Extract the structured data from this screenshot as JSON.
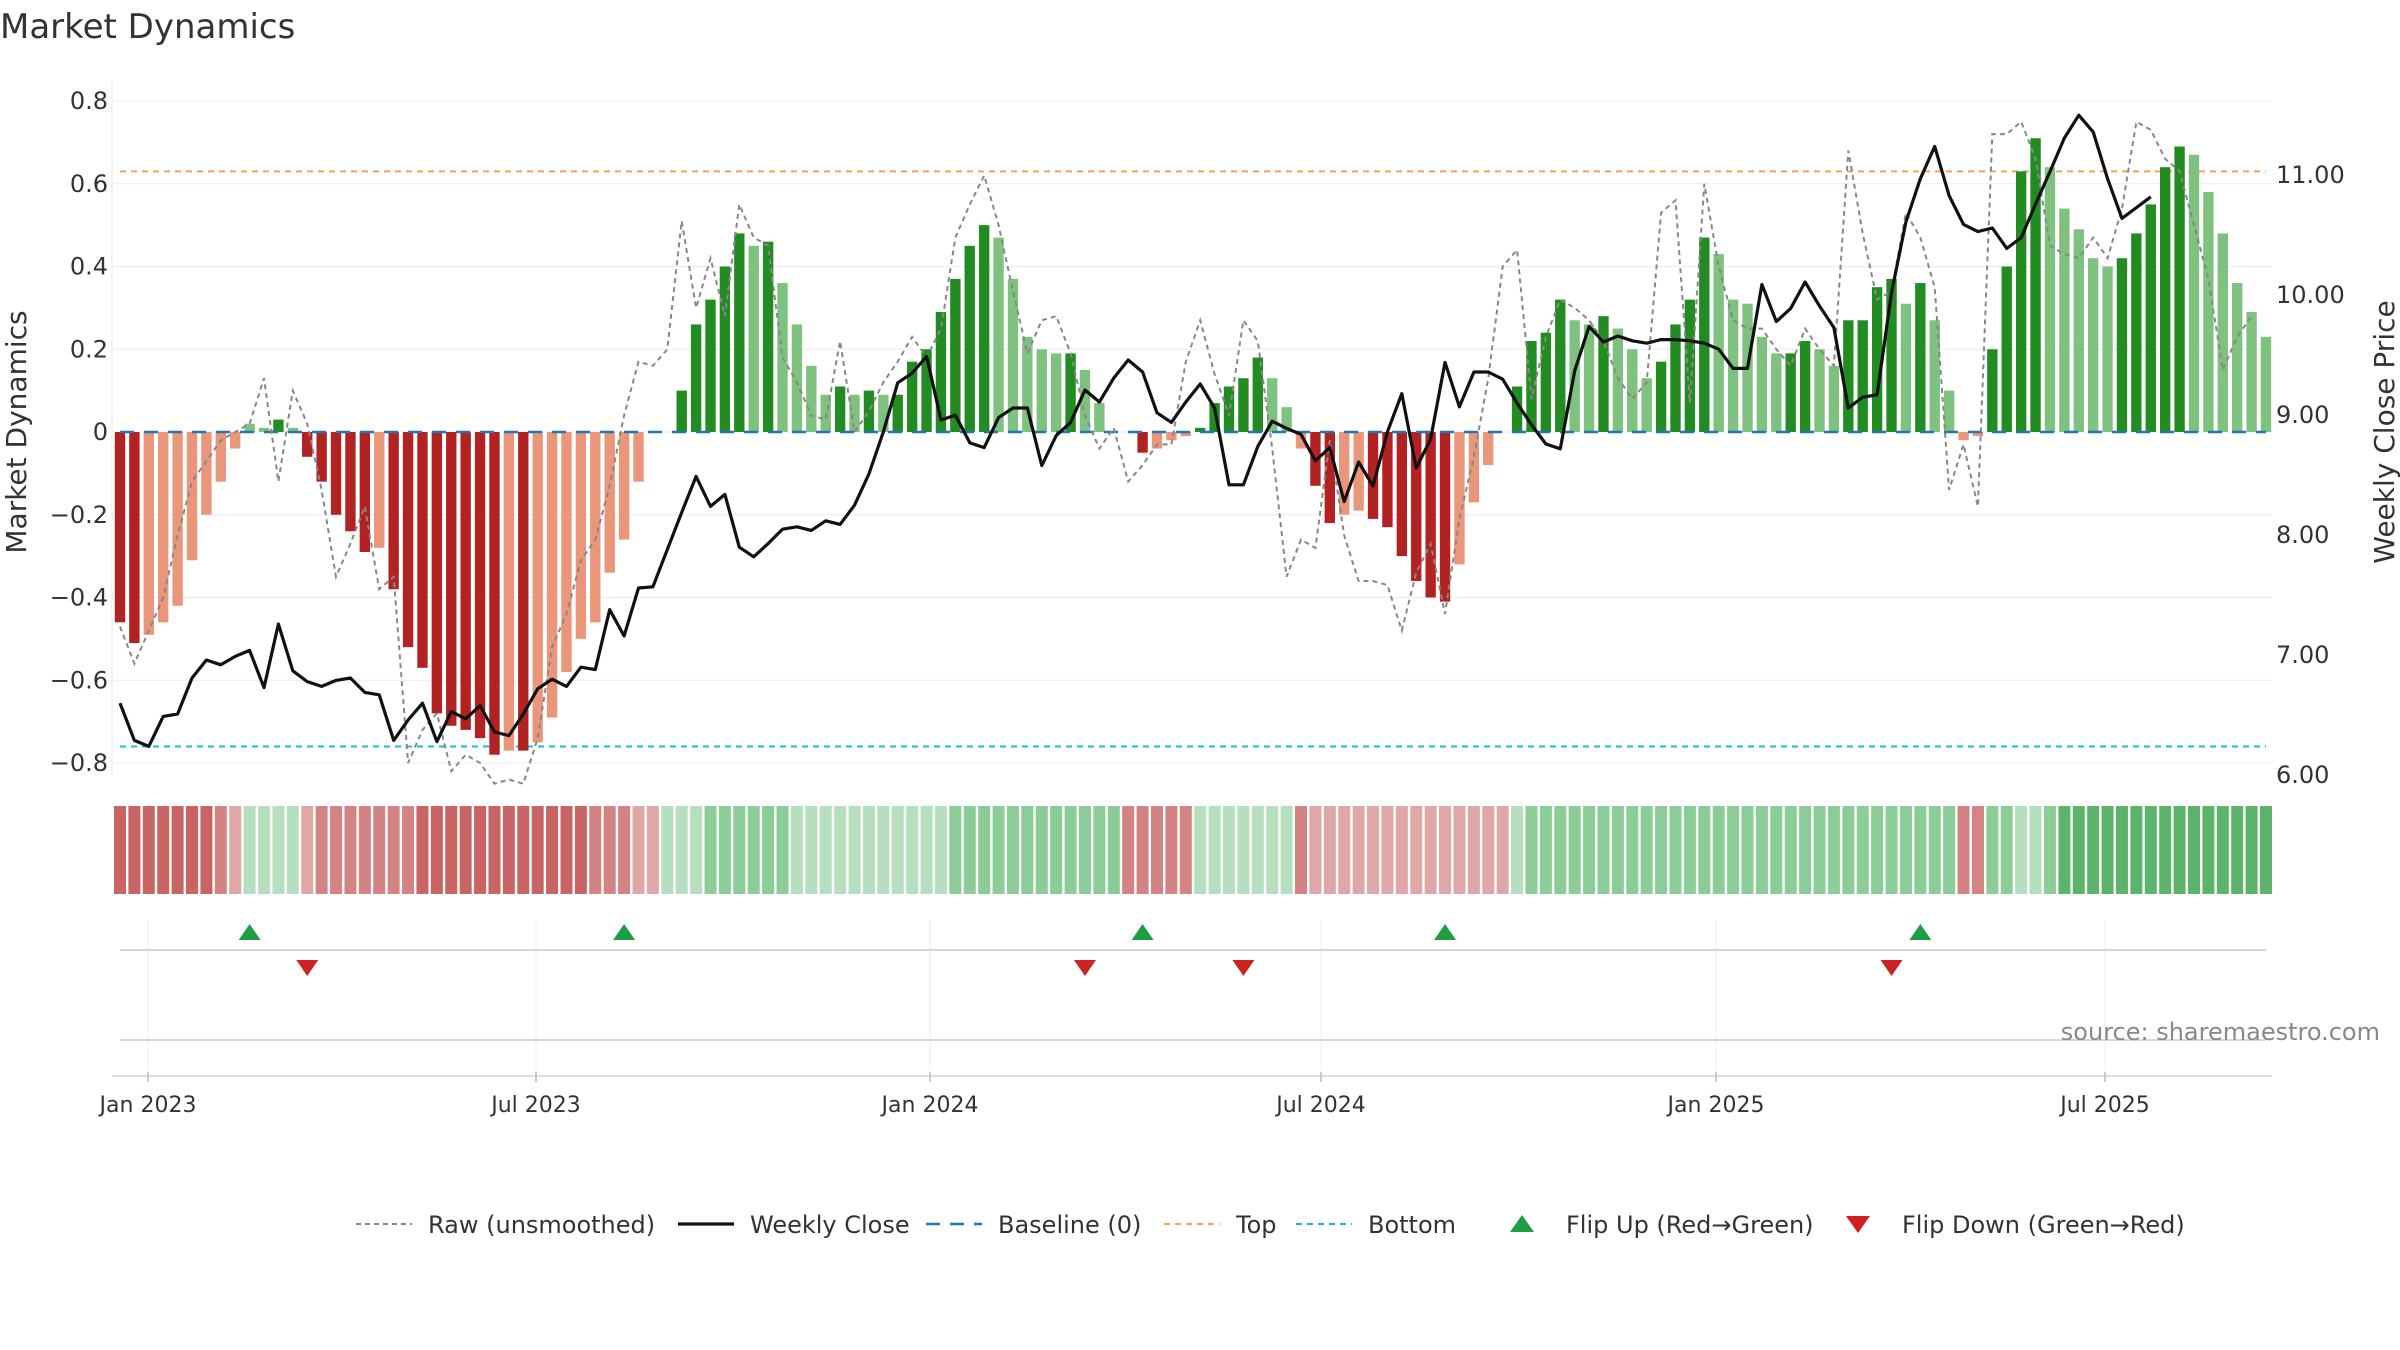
{
  "chart_data": {
    "type": "bar",
    "title": "Market Dynamics",
    "ylabel_left": "Market Dynamics",
    "ylabel_right": "Weekly Close Price",
    "left_ticks": [
      "0.8",
      "0.6",
      "0.4",
      "0.2",
      "0",
      "−0.2",
      "−0.4",
      "−0.6",
      "−0.8"
    ],
    "right_ticks": [
      "11.00",
      "10.00",
      "9.00",
      "8.00",
      "7.00",
      "6.00"
    ],
    "x_ticks": [
      "Jan 2023",
      "Jul 2023",
      "Jan 2024",
      "Jul 2024",
      "Jan 2025",
      "Jul 2025"
    ],
    "ylim_left": [
      -0.84,
      0.84
    ],
    "ylim_right": [
      6.0,
      11.8
    ],
    "top_level": 0.63,
    "bottom_level": -0.76,
    "bars": [
      -0.46,
      -0.51,
      -0.49,
      -0.46,
      -0.42,
      -0.31,
      -0.2,
      -0.12,
      -0.04,
      0.02,
      0.01,
      0.03,
      0.01,
      -0.06,
      -0.12,
      -0.2,
      -0.24,
      -0.29,
      -0.28,
      -0.38,
      -0.52,
      -0.57,
      -0.68,
      -0.71,
      -0.72,
      -0.74,
      -0.78,
      -0.77,
      -0.77,
      -0.75,
      -0.69,
      -0.58,
      -0.5,
      -0.46,
      -0.34,
      -0.26,
      -0.12,
      0,
      0,
      0.1,
      0.26,
      0.32,
      0.4,
      0.48,
      0.45,
      0.46,
      0.36,
      0.26,
      0.16,
      0.09,
      0.11,
      0.09,
      0.1,
      0.09,
      0.09,
      0.17,
      0.2,
      0.29,
      0.37,
      0.45,
      0.5,
      0.47,
      0.37,
      0.23,
      0.2,
      0.19,
      0.19,
      0.15,
      0.07,
      0,
      0,
      -0.05,
      -0.04,
      -0.02,
      -0.01,
      0.01,
      0.07,
      0.11,
      0.13,
      0.18,
      0.13,
      0.06,
      -0.04,
      -0.13,
      -0.22,
      -0.2,
      -0.19,
      -0.21,
      -0.23,
      -0.3,
      -0.36,
      -0.4,
      -0.41,
      -0.32,
      -0.17,
      -0.08,
      0,
      0.11,
      0.22,
      0.24,
      0.32,
      0.27,
      0.26,
      0.28,
      0.25,
      0.2,
      0.13,
      0.17,
      0.26,
      0.32,
      0.47,
      0.43,
      0.32,
      0.31,
      0.23,
      0.19,
      0.19,
      0.22,
      0.2,
      0.16,
      0.27,
      0.27,
      0.35,
      0.37,
      0.31,
      0.36,
      0.27,
      0.1,
      -0.02,
      -0.01,
      0.2,
      0.4,
      0.63,
      0.71,
      0.64,
      0.54,
      0.49,
      0.42,
      0.4,
      0.42,
      0.48,
      0.55,
      0.64,
      0.69,
      0.67,
      0.58,
      0.48,
      0.36,
      0.29,
      0.23
    ],
    "raw": [
      -0.47,
      -0.56,
      -0.48,
      -0.4,
      -0.25,
      -0.12,
      -0.07,
      -0.02,
      0,
      0.02,
      0.13,
      -0.12,
      0.1,
      0.02,
      -0.14,
      -0.35,
      -0.27,
      -0.18,
      -0.38,
      -0.35,
      -0.8,
      -0.72,
      -0.68,
      -0.82,
      -0.78,
      -0.8,
      -0.85,
      -0.84,
      -0.85,
      -0.74,
      -0.52,
      -0.44,
      -0.31,
      -0.26,
      -0.13,
      0.04,
      0.17,
      0.16,
      0.2,
      0.51,
      0.3,
      0.42,
      0.28,
      0.55,
      0.47,
      0.45,
      0.18,
      0.12,
      0.04,
      0.03,
      0.22,
      0,
      0.05,
      0.12,
      0.17,
      0.23,
      0.18,
      0.25,
      0.47,
      0.55,
      0.62,
      0.5,
      0.34,
      0.19,
      0.27,
      0.28,
      0.19,
      0.04,
      -0.04,
      0.01,
      -0.12,
      -0.08,
      -0.03,
      -0.03,
      0.17,
      0.27,
      0.14,
      0.04,
      0.27,
      0.22,
      -0.04,
      -0.35,
      -0.26,
      -0.28,
      -0.02,
      -0.25,
      -0.36,
      -0.36,
      -0.37,
      -0.48,
      -0.34,
      -0.27,
      -0.44,
      -0.21,
      -0.06,
      0.13,
      0.4,
      0.44,
      0.08,
      0.23,
      0.32,
      0.3,
      0.27,
      0.22,
      0.13,
      0.08,
      0.12,
      0.53,
      0.56,
      0.07,
      0.6,
      0.4,
      0.27,
      0.25,
      0.25,
      0.2,
      0.16,
      0.25,
      0.2,
      0.16,
      0.68,
      0.48,
      0.32,
      0.34,
      0.53,
      0.47,
      0.35,
      -0.14,
      -0.03,
      -0.18,
      0.72,
      0.72,
      0.75,
      0.66,
      0.45,
      0.43,
      0.42,
      0.47,
      0.42,
      0.54,
      0.75,
      0.73,
      0.66,
      0.63,
      0.5,
      0.37,
      0.15,
      0.23,
      0.28
    ],
    "weekly_close": [
      6.59,
      6.28,
      6.23,
      6.48,
      6.5,
      6.8,
      6.95,
      6.91,
      6.98,
      7.03,
      6.72,
      7.25,
      6.86,
      6.77,
      6.73,
      6.78,
      6.8,
      6.68,
      6.66,
      6.28,
      6.45,
      6.59,
      6.27,
      6.52,
      6.46,
      6.57,
      6.35,
      6.32,
      6.5,
      6.71,
      6.79,
      6.73,
      6.89,
      6.87,
      7.37,
      7.15,
      7.55,
      7.56,
      7.87,
      8.18,
      8.48,
      8.23,
      8.33,
      7.89,
      7.81,
      7.92,
      8.04,
      8.06,
      8.03,
      8.11,
      8.08,
      8.24,
      8.5,
      8.85,
      9.26,
      9.34,
      9.48,
      8.95,
      8.99,
      8.76,
      8.72,
      8.97,
      9.05,
      9.05,
      8.57,
      8.82,
      8.93,
      9.2,
      9.1,
      9.3,
      9.45,
      9.35,
      9.01,
      8.93,
      9.1,
      9.25,
      9.05,
      8.41,
      8.41,
      8.73,
      8.94,
      8.88,
      8.83,
      8.61,
      8.72,
      8.27,
      8.6,
      8.4,
      8.85,
      9.17,
      8.55,
      8.79,
      9.43,
      9.06,
      9.35,
      9.35,
      9.29,
      9.09,
      8.91,
      8.75,
      8.71,
      9.36,
      9.73,
      9.6,
      9.65,
      9.61,
      9.59,
      9.62,
      9.62,
      9.61,
      9.59,
      9.54,
      9.38,
      9.38,
      10.08,
      9.77,
      9.88,
      10.1,
      9.9,
      9.72,
      9.05,
      9.14,
      9.16,
      10.01,
      10.6,
      10.96,
      11.23,
      10.82,
      10.58,
      10.52,
      10.55,
      10.38,
      10.47,
      10.75,
      11.02,
      11.3,
      11.49,
      11.35,
      10.96,
      10.63,
      10.72,
      10.81
    ],
    "shade_levels": [
      3,
      3,
      3,
      3,
      3,
      3,
      3,
      2,
      1,
      1,
      1,
      1,
      1,
      1,
      2,
      2,
      2,
      2,
      2,
      2,
      2,
      3,
      3,
      3,
      3,
      3,
      3,
      3,
      3,
      3,
      3,
      3,
      3,
      2,
      2,
      2,
      1,
      1,
      1,
      1,
      1,
      2,
      2,
      2,
      2,
      2,
      2,
      1,
      1,
      1,
      1,
      1,
      1,
      1,
      1,
      1,
      1,
      1,
      2,
      2,
      2,
      2,
      2,
      2,
      2,
      2,
      2,
      2,
      2,
      2,
      2,
      2,
      2,
      2,
      2,
      1,
      1,
      1,
      1,
      1,
      1,
      1,
      2,
      1,
      1,
      1,
      1,
      1,
      1,
      1,
      1,
      1,
      1,
      1,
      1,
      1,
      1,
      1,
      2,
      2,
      2,
      2,
      2,
      2,
      2,
      2,
      2,
      2,
      2,
      2,
      2,
      2,
      2,
      2,
      2,
      2,
      2,
      2,
      2,
      2,
      2,
      2,
      2,
      2,
      2,
      2,
      2,
      2,
      2,
      2,
      2,
      2,
      1,
      1,
      2,
      3,
      3,
      3,
      3,
      3,
      3,
      3,
      3,
      3,
      3,
      3,
      3,
      3,
      3,
      3,
      3
    ],
    "flips_up": [
      9,
      35,
      71,
      92,
      125
    ],
    "flips_down": [
      13,
      67,
      78,
      123
    ],
    "source_text": "source: sharemaestro.com",
    "legend": [
      {
        "label": "Raw (unsmoothed)",
        "style": "raw"
      },
      {
        "label": "Weekly Close",
        "style": "close"
      },
      {
        "label": "Baseline (0)",
        "style": "baseline"
      },
      {
        "label": "Top",
        "style": "top"
      },
      {
        "label": "Bottom",
        "style": "bottom"
      },
      {
        "label": "Flip Up (Red→Green)",
        "style": "flipup"
      },
      {
        "label": "Flip Down (Green→Red)",
        "style": "flipdown"
      }
    ],
    "colors": {
      "red_strong": "#b22222",
      "red_light": "#e9967a",
      "green_strong": "#228b22",
      "green_light": "#7fc17f",
      "close": "#111111",
      "raw": "#888888",
      "baseline": "#1f77b4",
      "top": "#f4a460",
      "bottom": "#17becf",
      "flip_up": "#1e9e44",
      "flip_down": "#cc2222"
    }
  }
}
